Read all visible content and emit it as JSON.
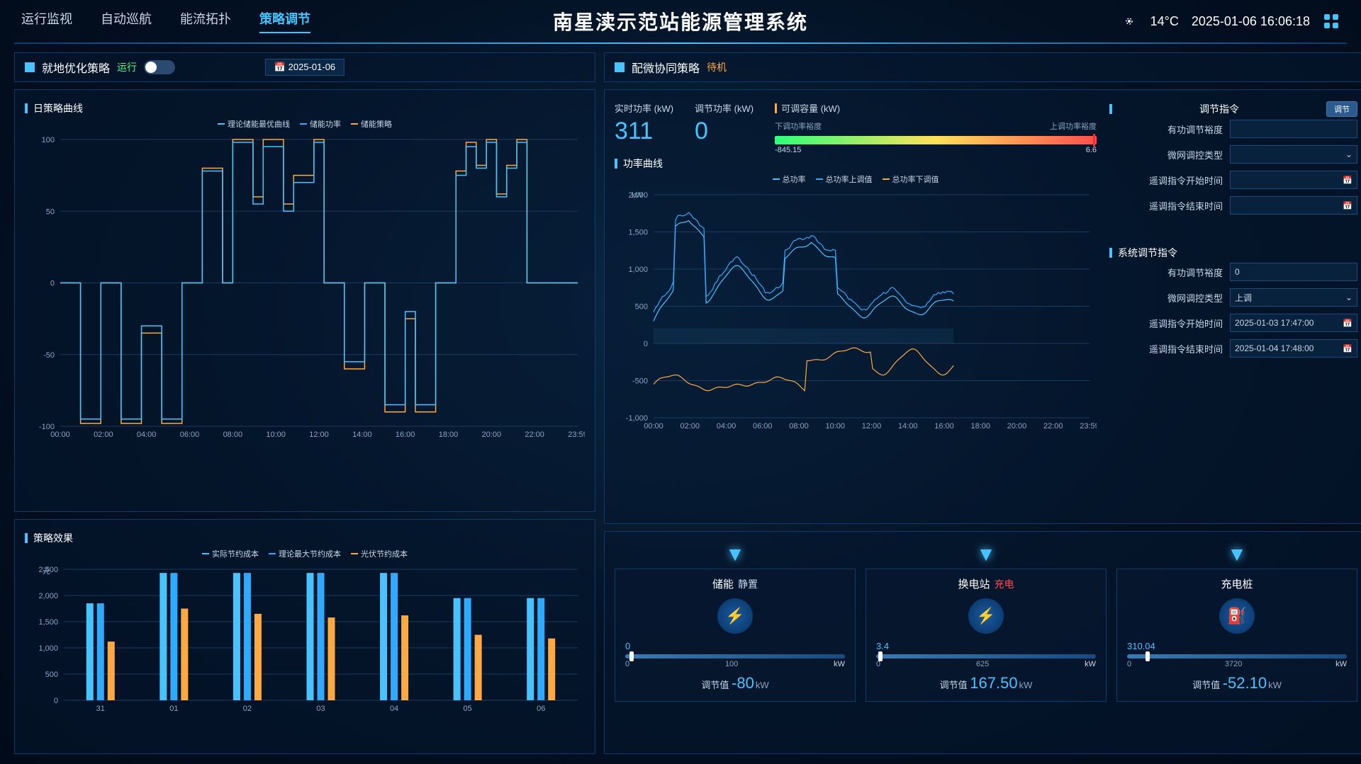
{
  "header": {
    "title": "南星渎示范站能源管理系统",
    "nav": [
      "运行监视",
      "自动巡航",
      "能流拓扑",
      "策略调节"
    ],
    "active_nav": 3,
    "temp": "14°C",
    "datetime": "2025-01-06 16:06:18"
  },
  "left_panel": {
    "title": "就地优化策略",
    "status": "运行",
    "date": "2025-01-06",
    "strategy_curve": {
      "title": "日策略曲线",
      "legend": [
        "理论储能最优曲线",
        "储能功率",
        "储能策略"
      ],
      "colors": [
        "#47c4ff",
        "#2eaaff",
        "#ffa940"
      ],
      "ylim": [
        -100,
        100
      ],
      "ytick": [
        -100,
        -50,
        0,
        50,
        100
      ],
      "xticks": [
        "00:00",
        "02:00",
        "04:00",
        "06:00",
        "08:00",
        "10:00",
        "12:00",
        "14:00",
        "16:00",
        "18:00",
        "20:00",
        "22:00",
        "23:59"
      ],
      "series_a": [
        0,
        0,
        -95,
        -95,
        0,
        0,
        -95,
        -95,
        -30,
        -30,
        -95,
        -95,
        0,
        0,
        78,
        78,
        0,
        98,
        98,
        55,
        95,
        95,
        50,
        70,
        70,
        98,
        0,
        0,
        -55,
        -55,
        0,
        0,
        -85,
        -85,
        -20,
        -85,
        -85,
        0,
        0,
        75,
        95,
        80,
        98,
        60,
        80,
        98,
        0,
        0,
        0,
        0,
        0,
        0
      ],
      "series_b": [
        0,
        0,
        -98,
        -98,
        0,
        0,
        -98,
        -98,
        -35,
        -35,
        -98,
        -98,
        0,
        0,
        80,
        80,
        0,
        100,
        100,
        60,
        100,
        100,
        55,
        75,
        75,
        100,
        0,
        0,
        -60,
        -60,
        0,
        0,
        -90,
        -90,
        -25,
        -90,
        -90,
        0,
        0,
        78,
        98,
        82,
        100,
        62,
        82,
        100,
        0,
        0,
        0,
        0,
        0,
        0
      ]
    },
    "effect_chart": {
      "title": "策略效果",
      "legend": [
        "实际节约成本",
        "理论最大节约成本",
        "光伏节约成本"
      ],
      "colors": [
        "#47c4ff",
        "#2eaaff",
        "#ffa940"
      ],
      "ylabel": "元",
      "ylim": [
        0,
        2500
      ],
      "ytick": [
        0,
        500,
        1000,
        1500,
        2000,
        2500
      ],
      "categories": [
        "31",
        "01",
        "02",
        "03",
        "04",
        "05",
        "06"
      ],
      "series": [
        [
          1850,
          2430,
          2430,
          2430,
          2430,
          1950,
          1950
        ],
        [
          1850,
          2430,
          2430,
          2430,
          2430,
          1950,
          1950
        ],
        [
          1120,
          1750,
          1650,
          1580,
          1620,
          1250,
          1180
        ]
      ],
      "bar_narrow": [
        50,
        30,
        55,
        48,
        52,
        40,
        60
      ]
    }
  },
  "right_panel": {
    "title": "配微协同策略",
    "status": "待机",
    "metrics": {
      "realtime_label": "实时功率 (kW)",
      "realtime_val": "311",
      "adjust_label": "调节功率 (kW)",
      "adjust_val": "0",
      "capacity_label": "可调容量  (kW)",
      "down_label": "下调功率裕度",
      "up_label": "上调功率裕度",
      "down_val": "-845.15",
      "up_val": "6.6"
    },
    "command": {
      "title": "调节指令",
      "btn": "调节",
      "rows": [
        {
          "label": "有功调节裕度",
          "val": ""
        },
        {
          "label": "微网调控类型",
          "val": "",
          "select": true
        },
        {
          "label": "遥调指令开始时间",
          "val": "",
          "cal": true
        },
        {
          "label": "遥调指令结束时间",
          "val": "",
          "cal": true
        }
      ]
    },
    "sys_command": {
      "title": "系统调节指令",
      "rows": [
        {
          "label": "有功调节裕度",
          "val": "0"
        },
        {
          "label": "微网调控类型",
          "val": "上调",
          "select": true
        },
        {
          "label": "遥调指令开始时间",
          "val": "2025-01-03 17:47:00",
          "cal": true
        },
        {
          "label": "遥调指令结束时间",
          "val": "2025-01-04 17:48:00",
          "cal": true
        }
      ]
    },
    "power_curve": {
      "title": "功率曲线",
      "legend": [
        "总功率",
        "总功率上调值",
        "总功率下调值"
      ],
      "colors": [
        "#47c4ff",
        "#2eaaff",
        "#ffa940"
      ],
      "ylabel": "kW",
      "ylim": [
        -1000,
        2000
      ],
      "ytick": [
        -1000,
        -500,
        0,
        500,
        1000,
        1500,
        2000
      ],
      "xticks": [
        "00:00",
        "02:00",
        "04:00",
        "06:00",
        "08:00",
        "10:00",
        "12:00",
        "14:00",
        "16:00",
        "18:00",
        "20:00",
        "22:00",
        "23:59"
      ]
    },
    "devices": [
      {
        "name": "储能",
        "sub": "静置",
        "sub_cls": "sub-idle",
        "icon": "⚡",
        "val": "0",
        "min": "0",
        "max": "100",
        "thumb": 0.02,
        "adj_label": "调节值",
        "adj": "-80",
        "unit": "kW"
      },
      {
        "name": "换电站",
        "sub": "充电",
        "sub_cls": "sub-charge",
        "icon": "⚡",
        "val": "3.4",
        "min": "0",
        "max": "625",
        "thumb": 0.01,
        "adj_label": "调节值",
        "adj": "167.50",
        "unit": "kW"
      },
      {
        "name": "充电桩",
        "sub": "",
        "sub_cls": "",
        "icon": "⛽",
        "val": "310.04",
        "min": "0",
        "max": "3720",
        "thumb": 0.085,
        "adj_label": "调节值",
        "adj": "-52.10",
        "unit": "kW"
      }
    ]
  }
}
